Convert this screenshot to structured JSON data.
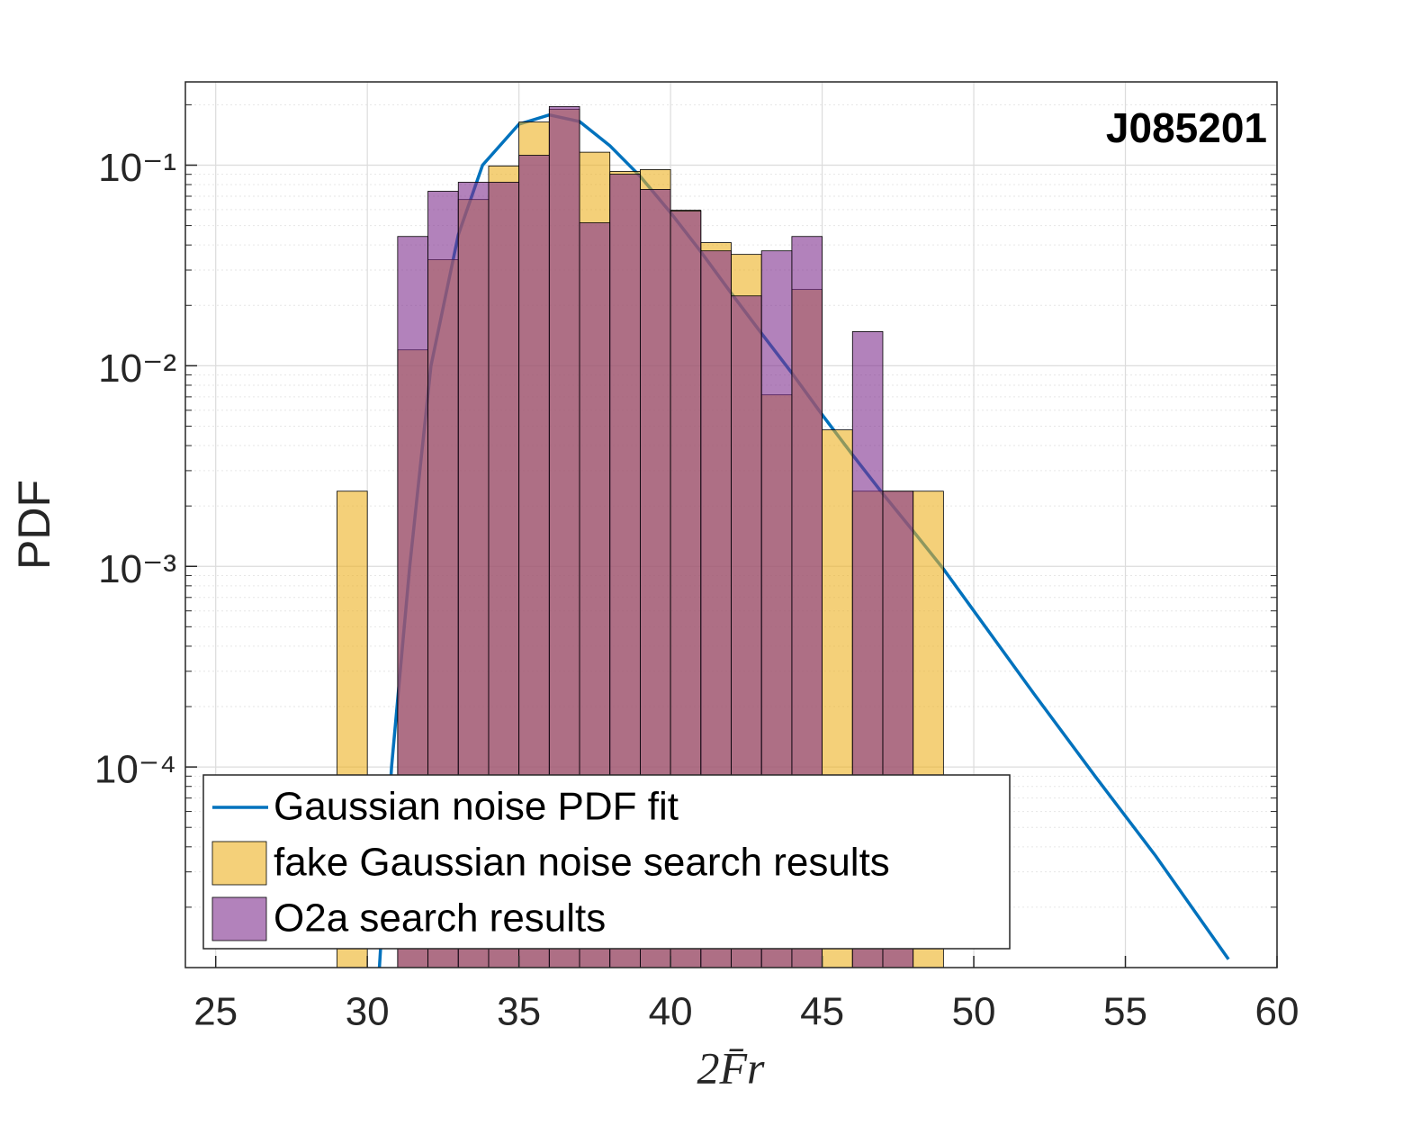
{
  "chart_data": {
    "type": "histogram",
    "xlabel": "2F̄r",
    "ylabel": "PDF",
    "annotation": "J085201",
    "bins": [
      29,
      30,
      31,
      32,
      33,
      34,
      35,
      36,
      37,
      38,
      39,
      40,
      41,
      42,
      43,
      44,
      45,
      46,
      47,
      48,
      49
    ],
    "series": [
      {
        "name": "fake Gaussian noise search results",
        "color": "#EDB120",
        "values": [
          0.00237,
          0,
          0.012,
          0.0338,
          0.0674,
          0.099,
          0.164,
          0.19,
          0.116,
          0.093,
          0.095,
          0.0596,
          0.0411,
          0.0359,
          0.00716,
          0.024,
          0.00479,
          0.00237,
          0.00237,
          0.00237
        ]
      },
      {
        "name": "O2a search results",
        "color": "#7E2F8E",
        "values": [
          0,
          0,
          0.0441,
          0.0741,
          0.0822,
          0.0822,
          0.112,
          0.196,
          0.0516,
          0.0901,
          0.0757,
          0.059,
          0.0374,
          0.0223,
          0.0374,
          0.0441,
          0,
          0.0148,
          0.00237,
          0
        ]
      }
    ],
    "fit": {
      "type": "line",
      "name": "Gaussian noise PDF fit",
      "color": "#0072BD",
      "x": [
        30.4,
        30.8,
        31.4,
        32.1,
        33,
        33.8,
        35,
        36,
        37,
        38,
        39,
        40,
        41,
        42,
        43,
        44,
        45,
        46,
        47,
        48,
        49,
        50,
        52,
        54,
        56,
        58.4
      ],
      "values": [
        1e-05,
        0.0001,
        0.001,
        0.01,
        0.045,
        0.1,
        0.16,
        0.178,
        0.165,
        0.125,
        0.088,
        0.058,
        0.037,
        0.023,
        0.0145,
        0.0092,
        0.0057,
        0.0036,
        0.0023,
        0.0015,
        0.00097,
        0.0006,
        0.00023,
        9e-05,
        3.6e-05,
        1.1e-05
      ]
    },
    "xlim": [
      24,
      60
    ],
    "xticks": [
      25,
      30,
      35,
      40,
      45,
      50,
      55,
      60
    ],
    "ylim": [
      1e-05,
      0.26
    ],
    "yticks": [
      {
        "value": 0.0001,
        "label": "10⁻⁴"
      },
      {
        "value": 0.001,
        "label": "10⁻³"
      },
      {
        "value": 0.01,
        "label": "10⁻²"
      },
      {
        "value": 0.1,
        "label": "10⁻¹"
      }
    ],
    "log_y": true,
    "grid": true,
    "legend": "lower left",
    "opacity": 0.6
  }
}
